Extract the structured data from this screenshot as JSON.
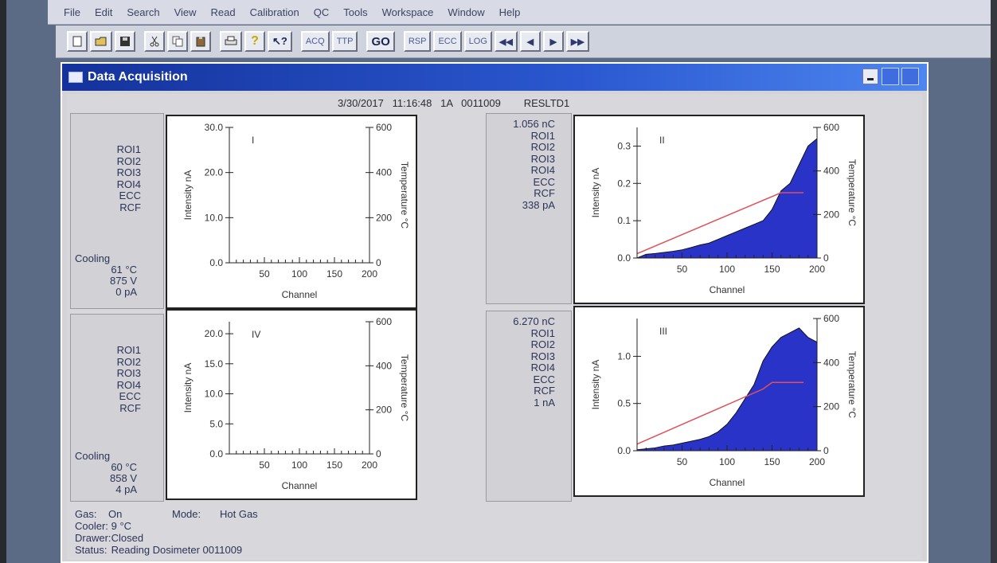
{
  "menu": [
    "File",
    "Edit",
    "Search",
    "View",
    "Read",
    "Calibration",
    "QC",
    "Tools",
    "Workspace",
    "Window",
    "Help"
  ],
  "toolbar": {
    "acq": "ACQ",
    "ttp": "TTP",
    "go": "GO",
    "rsp": "RSP",
    "ecc": "ECC",
    "log": "LOG"
  },
  "window": {
    "title": "Data Acquisition",
    "header": "3/30/2017   11:16:48   1A   0011009        RESLTD1"
  },
  "roi_labels": [
    "ROI1",
    "ROI2",
    "ROI3",
    "ROI4",
    "ECC",
    "RCF"
  ],
  "top_left": {
    "cooling_label": "Cooling",
    "temp": "61  °C",
    "voltage": "875  V",
    "current": "0  pA"
  },
  "bottom_left": {
    "cooling_label": "Cooling",
    "temp": "60  °C",
    "voltage": "858  V",
    "current": "4  pA"
  },
  "top_right_info": {
    "charge": "1.056      nC",
    "current": "338    pA"
  },
  "bottom_right_info": {
    "charge": "6.270      nC",
    "current": "1      nA"
  },
  "status": {
    "gas_label": "Gas:",
    "gas_value": "On",
    "mode_label": "Mode:",
    "mode_value": "Hot Gas",
    "cooler_label": "Cooler:",
    "cooler_value": "9  °C",
    "drawer_label": "Drawer:",
    "drawer_value": "Closed",
    "status_label": "Status:",
    "status_value": "Reading Dosimeter 0011009"
  },
  "chart_data": [
    {
      "type": "area",
      "panel": "I",
      "xlabel": "Channel",
      "ylabel": "Intensity nA",
      "y2label": "Temperature °C",
      "xticks": [
        50,
        100,
        150,
        200
      ],
      "yticks": [
        0.0,
        10.0,
        20.0,
        30.0
      ],
      "ytick_labels": [
        "0.0",
        "10.0",
        "20.0",
        "30.0"
      ],
      "y2ticks": [
        0,
        200,
        400,
        600
      ],
      "xlim": [
        0,
        200
      ],
      "ylim": [
        0,
        30
      ],
      "y2lim": [
        0,
        600
      ],
      "values": [],
      "temperature": []
    },
    {
      "type": "area",
      "panel": "II",
      "xlabel": "Channel",
      "ylabel": "Intensity nA",
      "y2label": "Temperature °C",
      "xticks": [
        50,
        100,
        150,
        200
      ],
      "yticks": [
        0.0,
        0.1,
        0.2,
        0.3
      ],
      "ytick_labels": [
        "0.0",
        "0.1",
        "0.2",
        "0.3"
      ],
      "y2ticks": [
        0,
        200,
        400,
        600
      ],
      "xlim": [
        0,
        200
      ],
      "ylim": [
        0,
        0.35
      ],
      "y2lim": [
        0,
        600
      ],
      "x": [
        0,
        10,
        20,
        30,
        40,
        50,
        60,
        70,
        80,
        90,
        100,
        110,
        120,
        130,
        140,
        150,
        160,
        170,
        180,
        190,
        200
      ],
      "values": [
        0.0,
        0.01,
        0.012,
        0.015,
        0.018,
        0.022,
        0.028,
        0.035,
        0.04,
        0.05,
        0.06,
        0.07,
        0.08,
        0.09,
        0.1,
        0.13,
        0.18,
        0.2,
        0.25,
        0.3,
        0.32
      ],
      "temperature_x": [
        0,
        160,
        185
      ],
      "temperature": [
        20,
        300,
        300
      ]
    },
    {
      "type": "area",
      "panel": "III",
      "xlabel": "Channel",
      "ylabel": "Intensity nA",
      "y2label": "Temperature °C",
      "xticks": [
        50,
        100,
        150,
        200
      ],
      "yticks": [
        0.0,
        0.5,
        1.0
      ],
      "ytick_labels": [
        "0.0",
        "0.5",
        "1.0"
      ],
      "y2ticks": [
        0,
        200,
        400,
        600
      ],
      "xlim": [
        0,
        200
      ],
      "ylim": [
        0,
        1.4
      ],
      "y2lim": [
        0,
        600
      ],
      "x": [
        0,
        10,
        20,
        30,
        40,
        50,
        60,
        70,
        80,
        90,
        100,
        110,
        120,
        130,
        140,
        150,
        160,
        170,
        180,
        190,
        200
      ],
      "values": [
        0.01,
        0.02,
        0.03,
        0.05,
        0.06,
        0.08,
        0.1,
        0.12,
        0.15,
        0.2,
        0.28,
        0.4,
        0.55,
        0.7,
        0.95,
        1.1,
        1.2,
        1.25,
        1.3,
        1.2,
        1.15
      ],
      "temperature_x": [
        0,
        140,
        150,
        185
      ],
      "temperature": [
        30,
        280,
        310,
        310
      ]
    },
    {
      "type": "area",
      "panel": "IV",
      "xlabel": "Channel",
      "ylabel": "Intensity nA",
      "y2label": "Temperature °C",
      "xticks": [
        50,
        100,
        150,
        200
      ],
      "yticks": [
        0.0,
        5.0,
        10.0,
        15.0,
        20.0
      ],
      "ytick_labels": [
        "0.0",
        "5.0",
        "10.0",
        "15.0",
        "20.0"
      ],
      "y2ticks": [
        0,
        200,
        400,
        600
      ],
      "xlim": [
        0,
        200
      ],
      "ylim": [
        0,
        22
      ],
      "y2lim": [
        0,
        600
      ],
      "values": [],
      "temperature": []
    }
  ]
}
